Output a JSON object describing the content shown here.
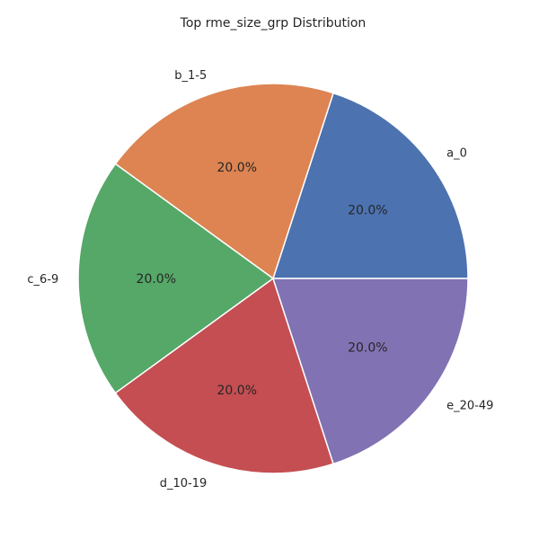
{
  "chart_data": {
    "type": "pie",
    "title": "Top rme_size_grp Distribution",
    "labels": [
      "a_0",
      "b_1-5",
      "c_6-9",
      "d_10-19",
      "e_20-49"
    ],
    "values": [
      20,
      20,
      20,
      20,
      20
    ],
    "percent_labels": [
      "20.0%",
      "20.0%",
      "20.0%",
      "20.0%",
      "20.0%"
    ],
    "colors": [
      "#4c72b0",
      "#dd8452",
      "#55a868",
      "#c44e52",
      "#8172b3"
    ],
    "start_angle_deg": 0,
    "direction": "counterclockwise"
  }
}
